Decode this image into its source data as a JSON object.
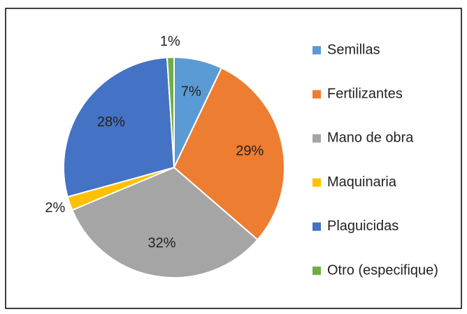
{
  "chart_data": {
    "type": "pie",
    "categories": [
      "Semillas",
      "Fertilizantes",
      "Mano de obra",
      "Maquinaria",
      "Plaguicidas",
      "Otro (especifique)"
    ],
    "values": [
      7,
      29,
      32,
      2,
      28,
      1
    ],
    "value_labels": [
      "7%",
      "29%",
      "32%",
      "2%",
      "28%",
      "1%"
    ],
    "colors": [
      "#5b9bd5",
      "#ed7d31",
      "#a5a5a5",
      "#ffc000",
      "#4472c4",
      "#70ad47"
    ],
    "legend": "right"
  }
}
